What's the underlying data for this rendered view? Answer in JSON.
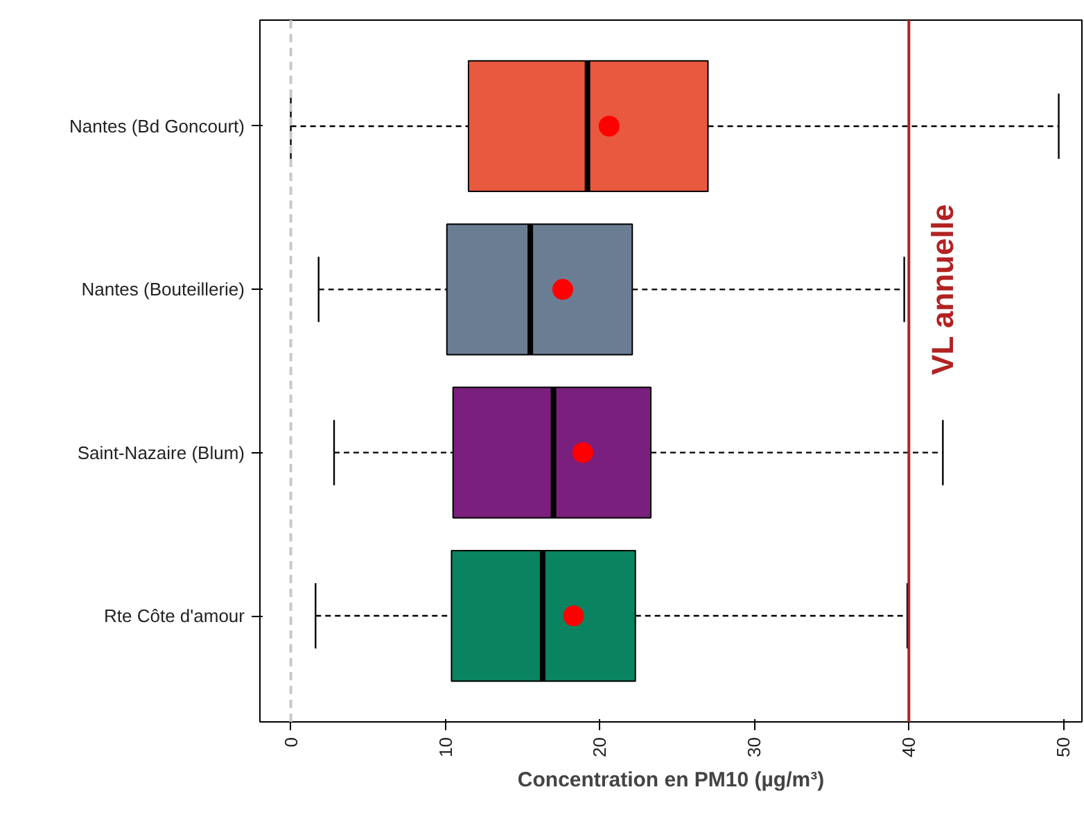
{
  "chart_data": {
    "type": "box",
    "orientation": "horizontal",
    "xlabel": "Concentration en PM10 (µg/m³)",
    "categories": [
      "Nantes (Bd Goncourt)",
      "Nantes (Bouteillerie)",
      "Saint-Nazaire (Blum)",
      "Rte Côte d'amour"
    ],
    "colors": [
      "#e8593f",
      "#6b7d93",
      "#7b1f7e",
      "#0a8360"
    ],
    "boxes": [
      {
        "low": 0,
        "q1": 11.5,
        "median": 19.2,
        "q3": 27.0,
        "high": 49.7,
        "mean": 20.6
      },
      {
        "low": 1.8,
        "q1": 10.1,
        "median": 15.5,
        "q3": 22.1,
        "high": 39.7,
        "mean": 17.6
      },
      {
        "low": 2.8,
        "q1": 10.5,
        "median": 17.0,
        "q3": 23.3,
        "high": 42.2,
        "mean": 18.9
      },
      {
        "low": 1.6,
        "q1": 10.4,
        "median": 16.3,
        "q3": 22.3,
        "high": 39.9,
        "mean": 18.3
      }
    ],
    "xlim": [
      -2,
      51.2
    ],
    "xticks": [
      0,
      10,
      20,
      30,
      40,
      50
    ],
    "ref_lines": [
      {
        "axis": "x",
        "value": 0,
        "label": null,
        "color": "#c8c8c8",
        "line_style": "dashed"
      },
      {
        "axis": "x",
        "value": 40,
        "label": "VL annuelle",
        "color": "#b22222",
        "line_style": "solid"
      }
    ],
    "grid": false
  }
}
